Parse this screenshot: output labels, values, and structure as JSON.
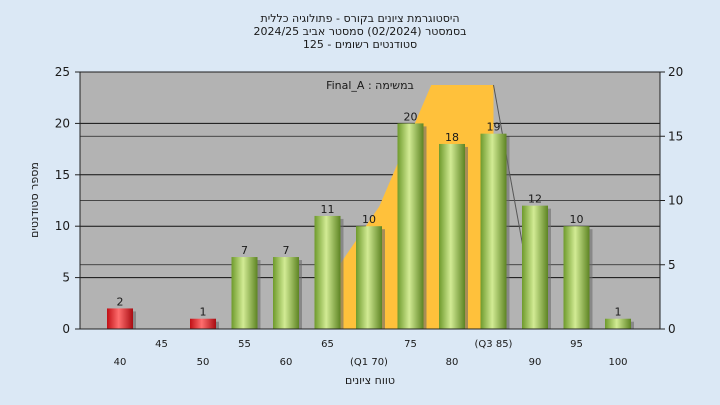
{
  "title_lines": [
    "היסטוגרמת ציונים בקורס - פתולוגיה כללית",
    "בסמסטר  (02/2024)  סמסטר אביב 2024/25",
    "סטודנטים רשומים - 125"
  ],
  "chart_data": {
    "type": "bar",
    "task_label": "Final_A : במשימה",
    "ylabel": "מספר סטודנטים",
    "xlabel": "טווח ציונים",
    "ylim_left": [
      0,
      25
    ],
    "yticks_left": [
      0,
      5,
      10,
      15,
      20,
      25
    ],
    "ylim_right": [
      0,
      20
    ],
    "yticks_right": [
      0,
      5,
      10,
      15,
      20
    ],
    "categories": [
      "40",
      "45",
      "50",
      "55",
      "60",
      "65",
      "(Q1 70)",
      "75",
      "80",
      "(Q3 85)",
      "90",
      "95",
      "100"
    ],
    "values": [
      2,
      0,
      1,
      7,
      7,
      11,
      10,
      20,
      18,
      19,
      12,
      10,
      1
    ],
    "value_labels": [
      "2",
      "",
      "1",
      "7",
      "7",
      "11",
      "10",
      "20",
      "18",
      "19",
      "12",
      "10",
      "1"
    ],
    "bar_colors": [
      "red",
      "none",
      "red",
      "green",
      "green",
      "green",
      "green",
      "green",
      "green",
      "green",
      "green",
      "green",
      "green"
    ],
    "iqr_band": {
      "from_category": "(Q1 70)",
      "to_category": "(Q3 85)",
      "color": "#ffc13b"
    },
    "grid": true,
    "colors": {
      "plot_bg": "#b3b3b3",
      "page_bg": "#dbe8f5",
      "green_dark": "#6e9a2c",
      "green_light": "#d2eb94",
      "red_dark": "#c00f15",
      "red_light": "#ff6e6e"
    }
  }
}
